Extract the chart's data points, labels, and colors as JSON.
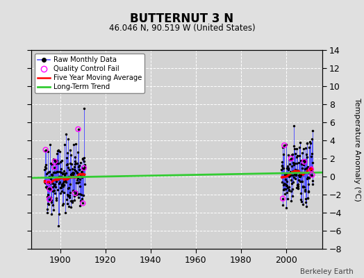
{
  "title": "BUTTERNUT 3 N",
  "subtitle": "46.046 N, 90.519 W (United States)",
  "ylabel": "Temperature Anomaly (°C)",
  "attribution": "Berkeley Earth",
  "xlim": [
    1887,
    2016
  ],
  "ylim": [
    -8,
    14
  ],
  "yticks": [
    -8,
    -6,
    -4,
    -2,
    0,
    2,
    4,
    6,
    8,
    10,
    12,
    14
  ],
  "xticks": [
    1900,
    1920,
    1940,
    1960,
    1980,
    2000
  ],
  "bg_color": "#d3d3d3",
  "fig_bg": "#e0e0e0",
  "grid_color": "#ffffff",
  "long_term_trend": {
    "years": [
      1887,
      2016
    ],
    "values": [
      -0.15,
      0.45
    ]
  }
}
